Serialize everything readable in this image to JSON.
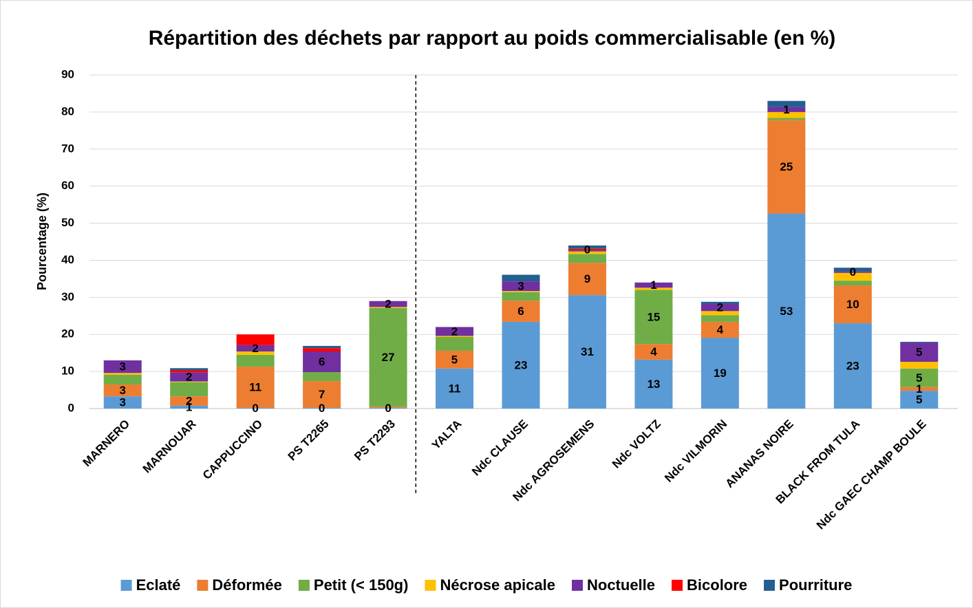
{
  "chart_data": {
    "type": "stacked_bar",
    "title": "Répartition des déchets par rapport au poids commercialisable (en %)",
    "ylabel": "Pourcentage (%)",
    "categories": [
      "MARNERO",
      "MARNOUAR",
      "CAPPUCCINO",
      "PS T2265",
      "PS T2293",
      "YALTA",
      "Ndc CLAUSE",
      "Ndc AGROSEMENS",
      "Ndc VOLTZ",
      "Ndc VILMORIN",
      "ANANAS NOIRE",
      "BLACK FROM TULA",
      "Ndc GAEC CHAMP BOULE"
    ],
    "series": [
      {
        "name": "Eclaté",
        "color": "#5b9bd5",
        "values": [
          3.3,
          0.8,
          0.2,
          0.2,
          0.2,
          10.8,
          23.4,
          30.6,
          13.2,
          19.1,
          52.6,
          23,
          4.8
        ],
        "value_labels": [
          "3",
          "1",
          "0",
          "0",
          "0",
          "11",
          "23",
          "31",
          "13",
          "19",
          "53",
          "23",
          "5"
        ]
      },
      {
        "name": "Déformée",
        "color": "#ed7d31",
        "values": [
          3.2,
          2.5,
          11.1,
          7.2,
          0.3,
          4.8,
          5.7,
          8.7,
          4.2,
          4.3,
          25.2,
          10.2,
          1.0
        ],
        "value_labels": [
          "3",
          "2",
          "11",
          "7",
          null,
          "5",
          "6",
          "9",
          "4",
          "4",
          "25",
          "10",
          "1"
        ]
      },
      {
        "name": "Petit (< 150g)",
        "color": "#70ad47",
        "values": [
          2.6,
          3.8,
          3.2,
          2.4,
          26.6,
          3.7,
          2.3,
          2.4,
          14.6,
          1.8,
          0.6,
          1.3,
          5.0
        ],
        "value_labels": [
          null,
          null,
          null,
          null,
          "27",
          null,
          null,
          null,
          "15",
          null,
          null,
          null,
          "5"
        ]
      },
      {
        "name": "Nécrose apicale",
        "color": "#ffc000",
        "values": [
          0.5,
          0.2,
          0.9,
          0,
          0.3,
          0.3,
          0.3,
          0.7,
          0.6,
          1.1,
          1.6,
          2.1,
          1.8
        ],
        "value_labels": [
          null,
          null,
          null,
          null,
          null,
          null,
          null,
          null,
          null,
          null,
          null,
          null,
          null
        ]
      },
      {
        "name": "Noctuelle",
        "color": "#7030a0",
        "values": [
          3.4,
          2.4,
          1.7,
          5.6,
          1.6,
          2.4,
          2.6,
          0.3,
          1.4,
          1.9,
          1.3,
          0.4,
          5.2
        ],
        "value_labels": [
          "3",
          "2",
          "2",
          "6",
          "2",
          "2",
          "3",
          null,
          "1",
          "2",
          "1",
          "0",
          "5"
        ]
      },
      {
        "name": "Bicolore",
        "color": "#ff0000",
        "values": [
          0,
          0.6,
          2.9,
          0.9,
          0,
          0,
          0,
          0.4,
          0,
          0,
          0,
          0,
          0
        ],
        "value_labels": [
          null,
          null,
          null,
          null,
          null,
          null,
          null,
          "0",
          null,
          null,
          null,
          null,
          null
        ]
      },
      {
        "name": "Pourriture",
        "color": "#255e91",
        "values": [
          0,
          0.6,
          0,
          0.6,
          0,
          0,
          1.8,
          0.9,
          0,
          0.6,
          1.7,
          1.0,
          0.2
        ],
        "value_labels": [
          null,
          null,
          null,
          null,
          null,
          null,
          null,
          null,
          null,
          null,
          null,
          null,
          null
        ]
      }
    ],
    "ylim": [
      0,
      90
    ],
    "yticks": [
      0,
      10,
      20,
      30,
      40,
      50,
      60,
      70,
      80,
      90
    ],
    "grid": true,
    "legend": "bottom"
  }
}
